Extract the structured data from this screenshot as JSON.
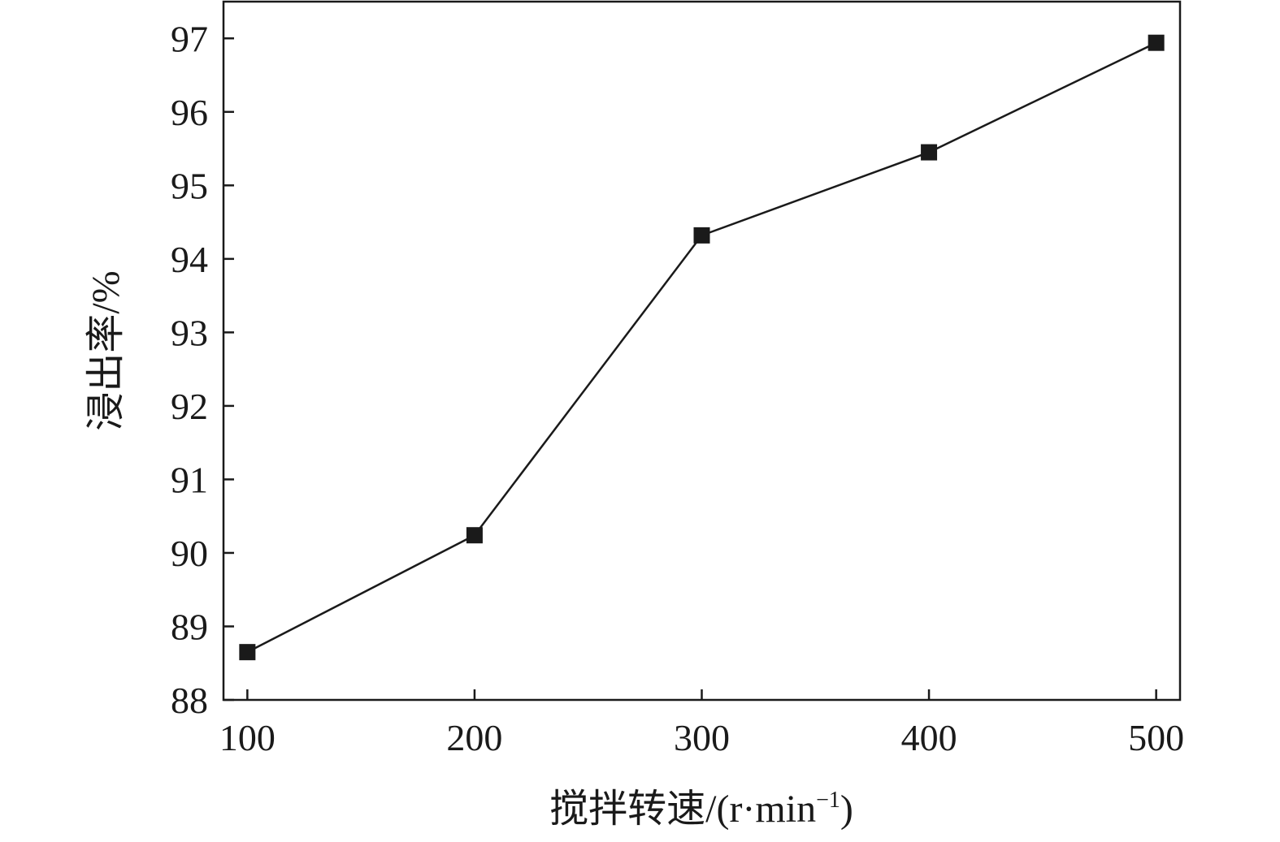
{
  "chart_data": {
    "type": "line",
    "title": "",
    "xlabel": "搅拌转速/(r·min",
    "xlabel_sup": "−1",
    "xlabel_close": ")",
    "ylabel": "浸出率/%",
    "x": [
      100,
      200,
      300,
      400,
      500
    ],
    "x_ticks": [
      "100",
      "200",
      "300",
      "400",
      "500"
    ],
    "y_ticks": [
      "88",
      "89",
      "90",
      "91",
      "92",
      "93",
      "94",
      "95",
      "96",
      "97"
    ],
    "xlim": [
      89.5,
      510.5
    ],
    "ylim": [
      88,
      97.5
    ],
    "series": [
      {
        "values": [
          88.65,
          90.24,
          94.32,
          95.45,
          96.94
        ],
        "marker": "square",
        "color": "#1a1a1a"
      }
    ],
    "grid": false,
    "legend": "none"
  }
}
